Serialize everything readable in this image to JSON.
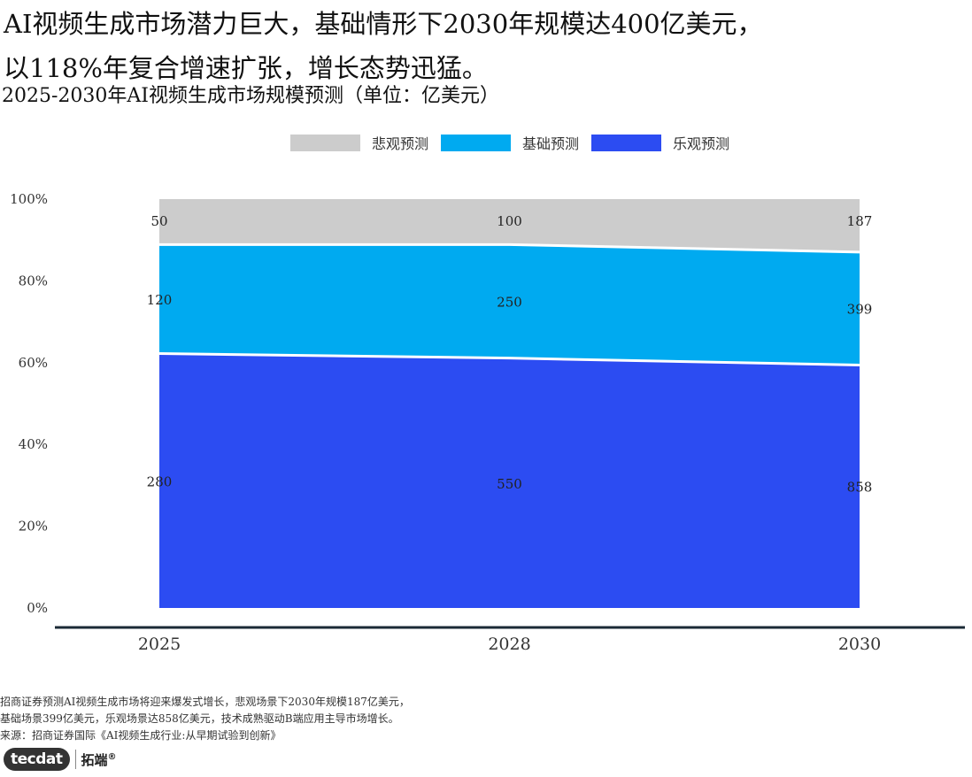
{
  "headline": {
    "line1": "AI视频生成市场潜力巨大，基础情形下2030年规模达400亿美元，",
    "line2": "以118%年复合增速扩张，增长态势迅猛。"
  },
  "chart_data": {
    "type": "area",
    "stacking": "percent",
    "title": "2025-2030年AI视频生成市场规模预测（单位：亿美元）",
    "categories": [
      "2025",
      "2028",
      "2030"
    ],
    "series": [
      {
        "name": "乐观预测",
        "values": [
          280,
          550,
          858
        ],
        "color": "#2c4cf2"
      },
      {
        "name": "基础预测",
        "values": [
          120,
          250,
          399
        ],
        "color": "#00aaf0"
      },
      {
        "name": "悲观预测",
        "values": [
          50,
          100,
          187
        ],
        "color": "#cccccc"
      }
    ],
    "legend_order": [
      "悲观预测",
      "基础预测",
      "乐观预测"
    ],
    "legend_position": "top",
    "y_ticks": [
      "0%",
      "20%",
      "40%",
      "60%",
      "80%",
      "100%"
    ],
    "ylim": [
      0,
      100
    ],
    "grid": false
  },
  "footnote": {
    "line1": "招商证券预测AI视频生成市场将迎来爆发式增长，悲观场景下2030年规模187亿美元，",
    "line2": "基础场景399亿美元，乐观场景达858亿美元，技术成熟驱动B端应用主导市场增长。",
    "line3": "来源：招商证券国际《AI视频生成行业:从早期试验到创新》"
  },
  "logo": {
    "en": "tecdat",
    "cn": "拓端",
    "mark": "®"
  }
}
